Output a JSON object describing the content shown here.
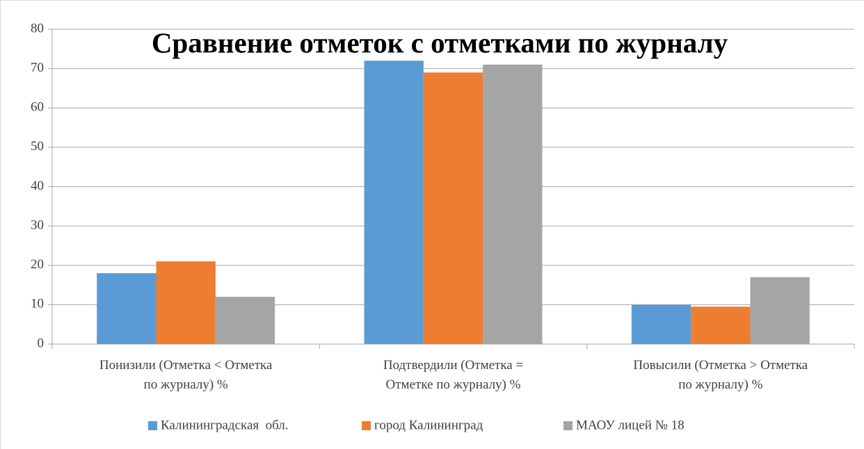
{
  "chart_data": {
    "type": "bar",
    "title": "Сравнение отметок с отметками по журналу",
    "categories": [
      "Понизили (Отметка < Отметка\nпо журналу) %",
      "Подтвердили (Отметка =\nОтметке по журналу) %",
      "Повысили (Отметка > Отметка\nпо журналу) %"
    ],
    "series": [
      {
        "name": "Калининградская  обл.",
        "color": "#5b9bd5",
        "values": [
          18,
          72,
          10
        ]
      },
      {
        "name": "город Калининград",
        "color": "#ed7d31",
        "values": [
          21,
          69,
          9.5
        ]
      },
      {
        "name": "МАОУ лицей № 18",
        "color": "#a5a5a5",
        "values": [
          12,
          71,
          17
        ]
      }
    ],
    "ylim": [
      0,
      80
    ],
    "yticks": [
      0,
      10,
      20,
      30,
      40,
      50,
      60,
      70,
      80
    ],
    "grid": true,
    "legend": "bottom"
  }
}
